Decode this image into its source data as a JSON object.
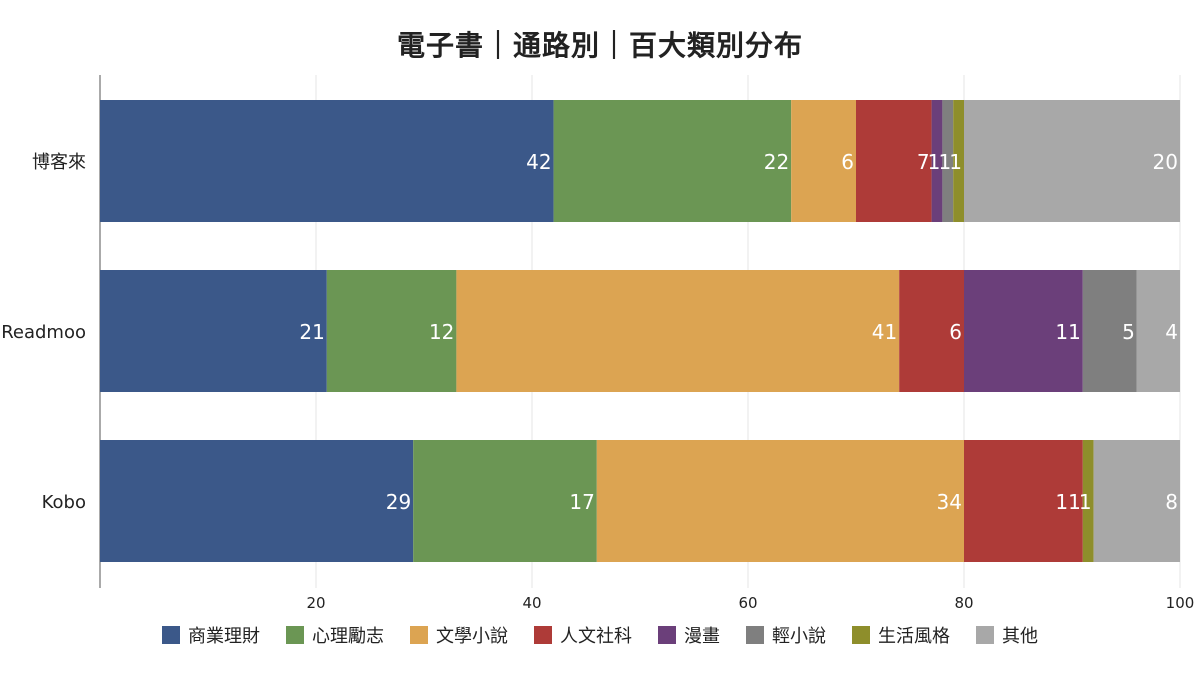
{
  "chart_data": {
    "type": "bar",
    "orientation": "horizontal",
    "stacked": true,
    "title": "電子書｜通路別｜百大類別分布",
    "categories": [
      "博客來",
      "Readmoo",
      "Kobo"
    ],
    "xlim": [
      0,
      100
    ],
    "x_ticks": [
      "20",
      "40",
      "60",
      "80",
      "100"
    ],
    "grid": true,
    "legend_position": "bottom",
    "series": [
      {
        "name": "商業理財",
        "color": "#3b5889",
        "values": [
          42,
          21,
          29
        ]
      },
      {
        "name": "心理勵志",
        "color": "#6b9654",
        "values": [
          22,
          12,
          17
        ]
      },
      {
        "name": "文學小說",
        "color": "#dca452",
        "values": [
          6,
          41,
          34
        ]
      },
      {
        "name": "人文社科",
        "color": "#ae3b38",
        "values": [
          7,
          6,
          11
        ]
      },
      {
        "name": "漫畫",
        "color": "#6b3f7a",
        "values": [
          1,
          11,
          0
        ]
      },
      {
        "name": "輕小說",
        "color": "#7f7f7f",
        "values": [
          1,
          5,
          0
        ]
      },
      {
        "name": "生活風格",
        "color": "#8e8e2b",
        "values": [
          1,
          0,
          1
        ]
      },
      {
        "name": "其他",
        "color": "#a8a8a8",
        "values": [
          20,
          4,
          8
        ]
      }
    ]
  }
}
